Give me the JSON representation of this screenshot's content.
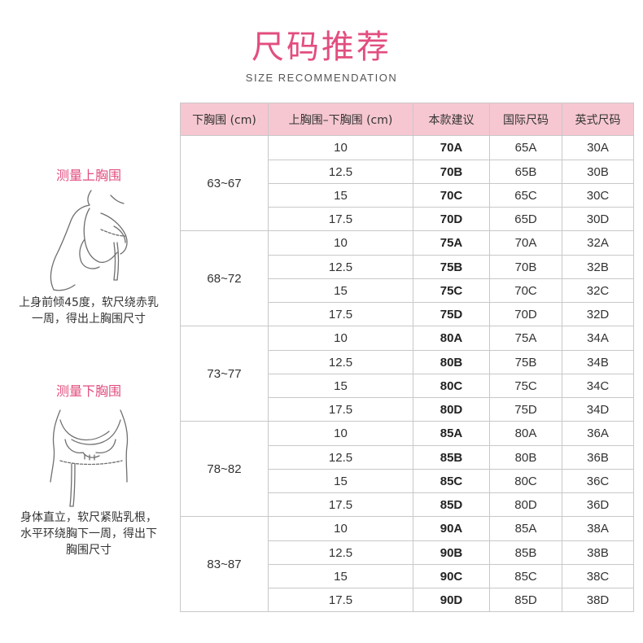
{
  "header": {
    "title": "尺码推荐",
    "subtitle": "SIZE RECOMMENDATION"
  },
  "guide": {
    "upper": {
      "title": "测量上胸围",
      "line1": "上身前倾45度，软尺绕赤乳",
      "line2": "一周，得出上胸围尺寸",
      "icon": "upper-bust-measuring-illustration"
    },
    "lower": {
      "title": "测量下胸围",
      "line1": "身体直立，软尺紧贴乳根，",
      "line2": "水平环绕胸下一周，得出下",
      "line3": "胸围尺寸",
      "icon": "under-bust-measuring-illustration"
    }
  },
  "table": {
    "headers": [
      "下胸围 (cm)",
      "上胸围–下胸围 (cm)",
      "本款建议",
      "国际尺码",
      "英式尺码"
    ],
    "groups": [
      {
        "underbust": "63~67",
        "rows": [
          [
            "10",
            "70A",
            "65A",
            "30A"
          ],
          [
            "12.5",
            "70B",
            "65B",
            "30B"
          ],
          [
            "15",
            "70C",
            "65C",
            "30C"
          ],
          [
            "17.5",
            "70D",
            "65D",
            "30D"
          ]
        ]
      },
      {
        "underbust": "68~72",
        "rows": [
          [
            "10",
            "75A",
            "70A",
            "32A"
          ],
          [
            "12.5",
            "75B",
            "70B",
            "32B"
          ],
          [
            "15",
            "75C",
            "70C",
            "32C"
          ],
          [
            "17.5",
            "75D",
            "70D",
            "32D"
          ]
        ]
      },
      {
        "underbust": "73~77",
        "rows": [
          [
            "10",
            "80A",
            "75A",
            "34A"
          ],
          [
            "12.5",
            "80B",
            "75B",
            "34B"
          ],
          [
            "15",
            "80C",
            "75C",
            "34C"
          ],
          [
            "17.5",
            "80D",
            "75D",
            "34D"
          ]
        ]
      },
      {
        "underbust": "78~82",
        "rows": [
          [
            "10",
            "85A",
            "80A",
            "36A"
          ],
          [
            "12.5",
            "85B",
            "80B",
            "36B"
          ],
          [
            "15",
            "85C",
            "80C",
            "36C"
          ],
          [
            "17.5",
            "85D",
            "80D",
            "36D"
          ]
        ]
      },
      {
        "underbust": "83~87",
        "rows": [
          [
            "10",
            "90A",
            "85A",
            "38A"
          ],
          [
            "12.5",
            "90B",
            "85B",
            "38B"
          ],
          [
            "15",
            "90C",
            "85C",
            "38C"
          ],
          [
            "17.5",
            "90D",
            "85D",
            "38D"
          ]
        ]
      }
    ]
  },
  "colors": {
    "accent": "#e24e7e",
    "header_bg": "#f6c7d1",
    "border": "#c8c8c8"
  }
}
